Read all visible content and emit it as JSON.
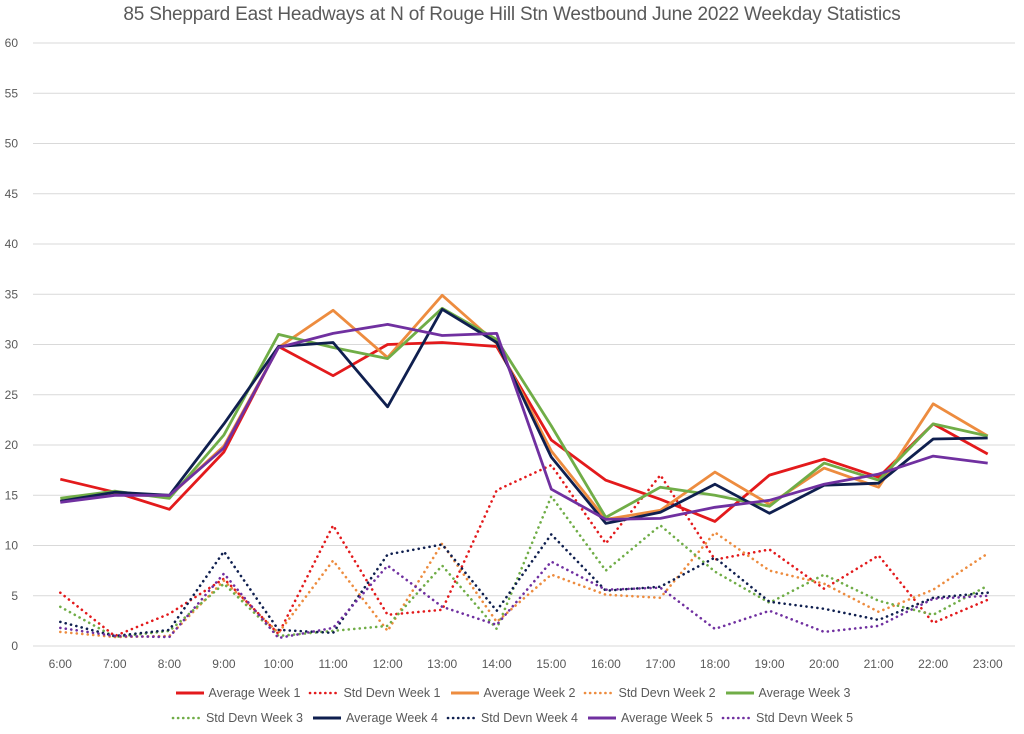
{
  "chart_data": {
    "type": "line",
    "title": "85 Sheppard East Headways at N of Rouge Hill Stn Westbound June 2022 Weekday Statistics",
    "xlabel": "",
    "ylabel": "",
    "ylim": [
      0,
      60
    ],
    "yticks": [
      0,
      5,
      10,
      15,
      20,
      25,
      30,
      35,
      40,
      45,
      50,
      55,
      60
    ],
    "grid": true,
    "legend_position": "bottom",
    "categories": [
      "6:00",
      "7:00",
      "8:00",
      "9:00",
      "10:00",
      "11:00",
      "12:00",
      "13:00",
      "14:00",
      "15:00",
      "16:00",
      "17:00",
      "18:00",
      "19:00",
      "20:00",
      "21:00",
      "22:00",
      "23:00"
    ],
    "series": [
      {
        "name": "Average Week 1",
        "color": "#e31a1c",
        "style": "solid",
        "values": [
          16.6,
          15.3,
          13.6,
          19.3,
          29.8,
          26.9,
          30.0,
          30.2,
          29.8,
          20.5,
          16.5,
          14.6,
          12.4,
          17.0,
          18.6,
          16.8,
          22.1,
          19.1
        ]
      },
      {
        "name": "Std Devn Week 1",
        "color": "#e31a1c",
        "style": "dotted",
        "values": [
          5.3,
          1.0,
          3.2,
          6.7,
          1.2,
          12.0,
          3.1,
          3.6,
          15.5,
          18.0,
          10.2,
          17.0,
          8.6,
          9.6,
          5.7,
          9.0,
          2.3,
          4.6
        ]
      },
      {
        "name": "Average Week 2",
        "color": "#ed8c3f",
        "style": "solid",
        "values": [
          14.4,
          15.1,
          14.9,
          19.9,
          29.7,
          33.4,
          28.7,
          34.9,
          30.1,
          19.4,
          12.6,
          13.5,
          17.3,
          14.1,
          17.7,
          15.8,
          24.1,
          20.9
        ]
      },
      {
        "name": "Std Devn Week 2",
        "color": "#ed8c3f",
        "style": "dotted",
        "values": [
          1.4,
          0.9,
          1.0,
          6.5,
          1.3,
          8.5,
          1.5,
          10.2,
          2.4,
          7.1,
          5.1,
          4.8,
          11.3,
          7.5,
          6.2,
          3.4,
          5.6,
          9.2
        ]
      },
      {
        "name": "Average Week 3",
        "color": "#70ad47",
        "style": "solid",
        "values": [
          14.7,
          15.4,
          14.7,
          21.0,
          31.0,
          29.7,
          28.6,
          33.6,
          30.5,
          21.9,
          12.8,
          15.8,
          15.0,
          13.9,
          18.2,
          16.5,
          22.1,
          20.9
        ]
      },
      {
        "name": "Std Devn Week 3",
        "color": "#70ad47",
        "style": "dotted",
        "values": [
          3.9,
          0.9,
          1.5,
          6.2,
          1.0,
          1.5,
          2.0,
          8.0,
          1.7,
          14.9,
          7.5,
          12.0,
          7.4,
          4.3,
          7.1,
          4.5,
          3.1,
          6.0
        ]
      },
      {
        "name": "Average Week 4",
        "color": "#0f1f4f",
        "style": "solid",
        "values": [
          14.4,
          15.3,
          15.0,
          22.1,
          29.8,
          30.2,
          23.8,
          33.5,
          30.2,
          18.8,
          12.2,
          13.3,
          16.1,
          13.2,
          16.0,
          16.2,
          20.6,
          20.7
        ]
      },
      {
        "name": "Std Devn Week 4",
        "color": "#0f1f4f",
        "style": "dotted",
        "values": [
          2.4,
          1.0,
          1.6,
          9.4,
          1.6,
          1.3,
          9.1,
          10.1,
          3.5,
          11.1,
          5.5,
          5.9,
          8.8,
          4.4,
          3.7,
          2.6,
          4.8,
          5.3
        ]
      },
      {
        "name": "Average Week 5",
        "color": "#7030a0",
        "style": "solid",
        "values": [
          14.3,
          15.0,
          15.0,
          19.7,
          29.7,
          31.1,
          32.0,
          30.9,
          31.1,
          15.6,
          12.6,
          12.7,
          13.8,
          14.5,
          16.1,
          17.1,
          18.9,
          18.2
        ]
      },
      {
        "name": "Std Devn Week 5",
        "color": "#7030a0",
        "style": "dotted",
        "values": [
          1.8,
          1.0,
          0.9,
          7.2,
          0.8,
          1.8,
          8.0,
          3.9,
          2.1,
          8.4,
          5.6,
          5.8,
          1.7,
          3.5,
          1.4,
          2.0,
          4.7,
          5.0
        ]
      }
    ]
  }
}
